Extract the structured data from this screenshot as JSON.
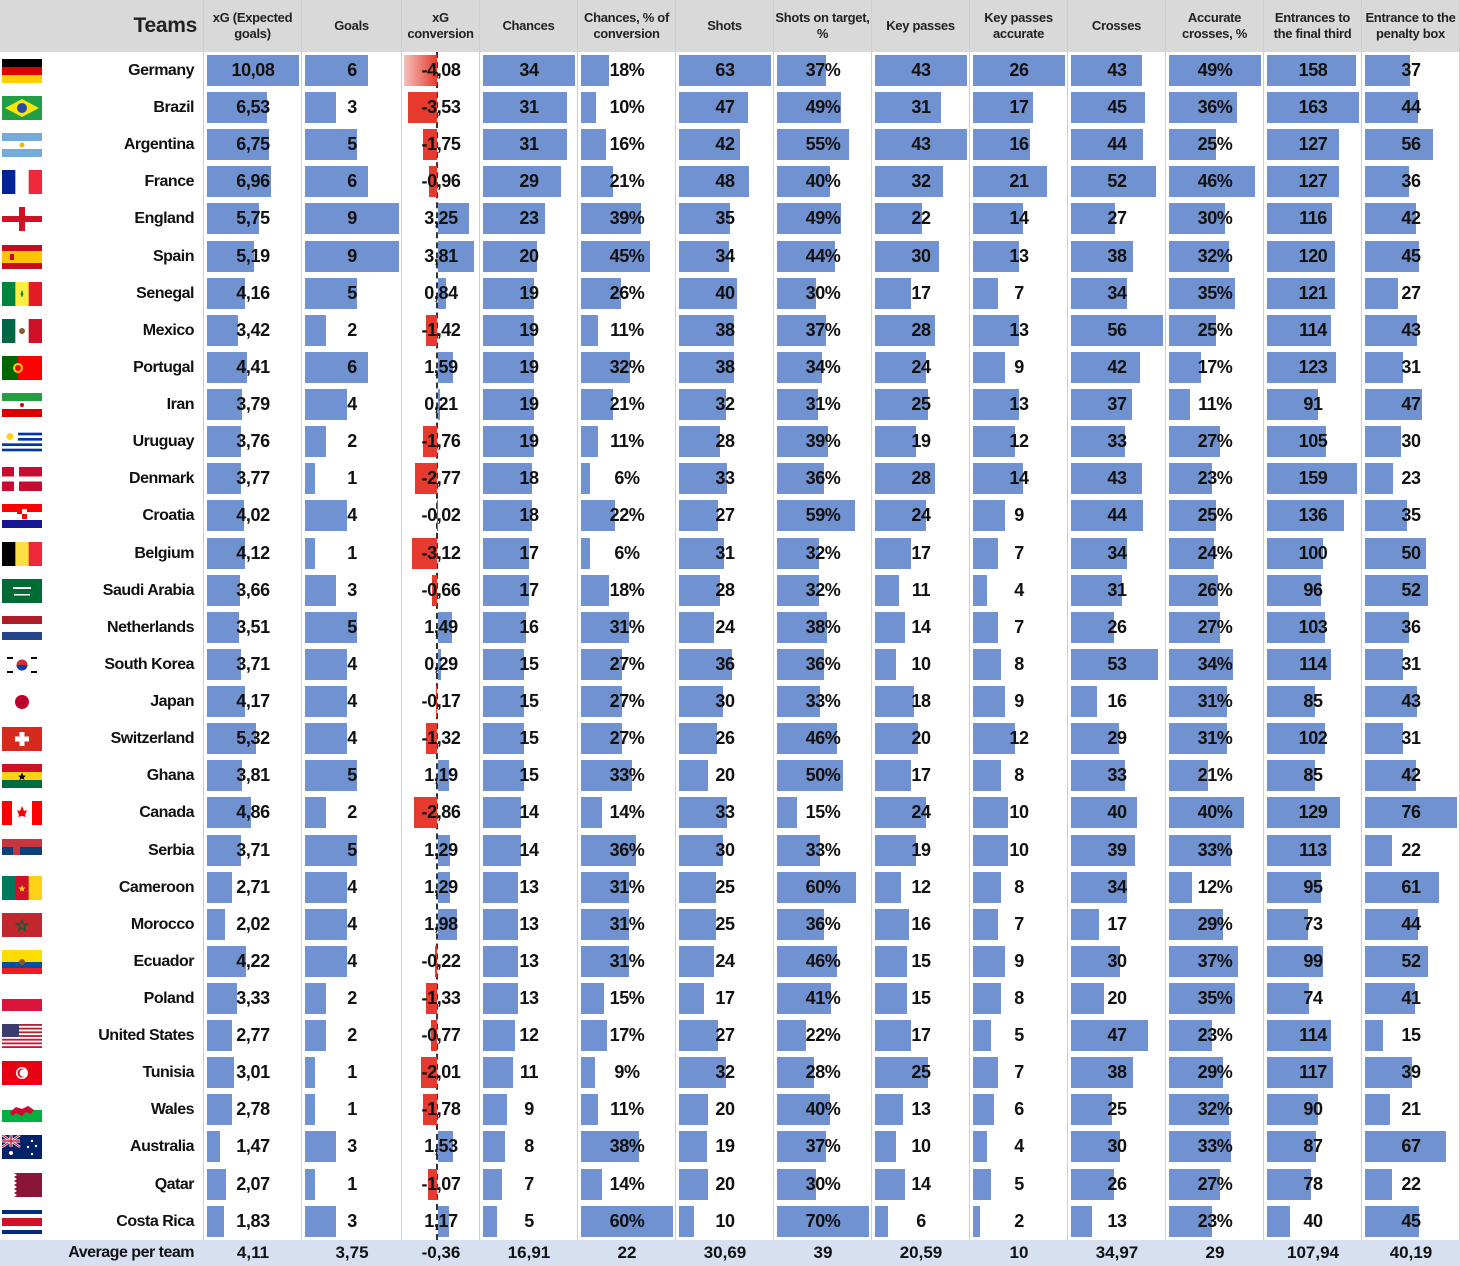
{
  "chart_data": {
    "type": "table",
    "columns": [
      {
        "key": "team",
        "label": "Teams"
      },
      {
        "key": "xg",
        "label": "xG (Expected goals)"
      },
      {
        "key": "goals",
        "label": "Goals"
      },
      {
        "key": "xgconv",
        "label": "xG conversion"
      },
      {
        "key": "chances",
        "label": "Chances"
      },
      {
        "key": "chance_conv",
        "label": "Chances, % of conversion"
      },
      {
        "key": "shots",
        "label": "Shots"
      },
      {
        "key": "sot",
        "label": "Shots on target, %"
      },
      {
        "key": "key_passes",
        "label": "Key passes"
      },
      {
        "key": "kp_acc",
        "label": "Key passes accurate"
      },
      {
        "key": "crosses",
        "label": "Crosses"
      },
      {
        "key": "acc_cross",
        "label": "Accurate crosses, %"
      },
      {
        "key": "final_third",
        "label": "Entrances to the final third"
      },
      {
        "key": "pen_box",
        "label": "Entrance to the penalty box"
      }
    ],
    "rows": [
      {
        "team": "Germany",
        "flag": "germany",
        "xg": "10,08",
        "goals": 6,
        "xgconv": "-4,08",
        "chances": 34,
        "chance_conv": "18%",
        "shots": 63,
        "sot": "37%",
        "key_passes": 43,
        "kp_acc": 26,
        "crosses": 43,
        "acc_cross": "49%",
        "final_third": 158,
        "pen_box": 37
      },
      {
        "team": "Brazil",
        "flag": "brazil",
        "xg": "6,53",
        "goals": 3,
        "xgconv": "-3,53",
        "chances": 31,
        "chance_conv": "10%",
        "shots": 47,
        "sot": "49%",
        "key_passes": 31,
        "kp_acc": 17,
        "crosses": 45,
        "acc_cross": "36%",
        "final_third": 163,
        "pen_box": 44
      },
      {
        "team": "Argentina",
        "flag": "argentina",
        "xg": "6,75",
        "goals": 5,
        "xgconv": "-1,75",
        "chances": 31,
        "chance_conv": "16%",
        "shots": 42,
        "sot": "55%",
        "key_passes": 43,
        "kp_acc": 16,
        "crosses": 44,
        "acc_cross": "25%",
        "final_third": 127,
        "pen_box": 56
      },
      {
        "team": "France",
        "flag": "france",
        "xg": "6,96",
        "goals": 6,
        "xgconv": "-0,96",
        "chances": 29,
        "chance_conv": "21%",
        "shots": 48,
        "sot": "40%",
        "key_passes": 32,
        "kp_acc": 21,
        "crosses": 52,
        "acc_cross": "46%",
        "final_third": 127,
        "pen_box": 36
      },
      {
        "team": "England",
        "flag": "england",
        "xg": "5,75",
        "goals": 9,
        "xgconv": "3,25",
        "chances": 23,
        "chance_conv": "39%",
        "shots": 35,
        "sot": "49%",
        "key_passes": 22,
        "kp_acc": 14,
        "crosses": 27,
        "acc_cross": "30%",
        "final_third": 116,
        "pen_box": 42
      },
      {
        "team": "Spain",
        "flag": "spain",
        "xg": "5,19",
        "goals": 9,
        "xgconv": "3,81",
        "chances": 20,
        "chance_conv": "45%",
        "shots": 34,
        "sot": "44%",
        "key_passes": 30,
        "kp_acc": 13,
        "crosses": 38,
        "acc_cross": "32%",
        "final_third": 120,
        "pen_box": 45
      },
      {
        "team": "Senegal",
        "flag": "senegal",
        "xg": "4,16",
        "goals": 5,
        "xgconv": "0,84",
        "chances": 19,
        "chance_conv": "26%",
        "shots": 40,
        "sot": "30%",
        "key_passes": 17,
        "kp_acc": 7,
        "crosses": 34,
        "acc_cross": "35%",
        "final_third": 121,
        "pen_box": 27
      },
      {
        "team": "Mexico",
        "flag": "mexico",
        "xg": "3,42",
        "goals": 2,
        "xgconv": "-1,42",
        "chances": 19,
        "chance_conv": "11%",
        "shots": 38,
        "sot": "37%",
        "key_passes": 28,
        "kp_acc": 13,
        "crosses": 56,
        "acc_cross": "25%",
        "final_third": 114,
        "pen_box": 43
      },
      {
        "team": "Portugal",
        "flag": "portugal",
        "xg": "4,41",
        "goals": 6,
        "xgconv": "1,59",
        "chances": 19,
        "chance_conv": "32%",
        "shots": 38,
        "sot": "34%",
        "key_passes": 24,
        "kp_acc": 9,
        "crosses": 42,
        "acc_cross": "17%",
        "final_third": 123,
        "pen_box": 31
      },
      {
        "team": "Iran",
        "flag": "iran",
        "xg": "3,79",
        "goals": 4,
        "xgconv": "0,21",
        "chances": 19,
        "chance_conv": "21%",
        "shots": 32,
        "sot": "31%",
        "key_passes": 25,
        "kp_acc": 13,
        "crosses": 37,
        "acc_cross": "11%",
        "final_third": 91,
        "pen_box": 47
      },
      {
        "team": "Uruguay",
        "flag": "uruguay",
        "xg": "3,76",
        "goals": 2,
        "xgconv": "-1,76",
        "chances": 19,
        "chance_conv": "11%",
        "shots": 28,
        "sot": "39%",
        "key_passes": 19,
        "kp_acc": 12,
        "crosses": 33,
        "acc_cross": "27%",
        "final_third": 105,
        "pen_box": 30
      },
      {
        "team": "Denmark",
        "flag": "denmark",
        "xg": "3,77",
        "goals": 1,
        "xgconv": "-2,77",
        "chances": 18,
        "chance_conv": "6%",
        "shots": 33,
        "sot": "36%",
        "key_passes": 28,
        "kp_acc": 14,
        "crosses": 43,
        "acc_cross": "23%",
        "final_third": 159,
        "pen_box": 23
      },
      {
        "team": "Croatia",
        "flag": "croatia",
        "xg": "4,02",
        "goals": 4,
        "xgconv": "-0,02",
        "chances": 18,
        "chance_conv": "22%",
        "shots": 27,
        "sot": "59%",
        "key_passes": 24,
        "kp_acc": 9,
        "crosses": 44,
        "acc_cross": "25%",
        "final_third": 136,
        "pen_box": 35
      },
      {
        "team": "Belgium",
        "flag": "belgium",
        "xg": "4,12",
        "goals": 1,
        "xgconv": "-3,12",
        "chances": 17,
        "chance_conv": "6%",
        "shots": 31,
        "sot": "32%",
        "key_passes": 17,
        "kp_acc": 7,
        "crosses": 34,
        "acc_cross": "24%",
        "final_third": 100,
        "pen_box": 50
      },
      {
        "team": "Saudi Arabia",
        "flag": "saudi",
        "xg": "3,66",
        "goals": 3,
        "xgconv": "-0,66",
        "chances": 17,
        "chance_conv": "18%",
        "shots": 28,
        "sot": "32%",
        "key_passes": 11,
        "kp_acc": 4,
        "crosses": 31,
        "acc_cross": "26%",
        "final_third": 96,
        "pen_box": 52
      },
      {
        "team": "Netherlands",
        "flag": "netherlands",
        "xg": "3,51",
        "goals": 5,
        "xgconv": "1,49",
        "chances": 16,
        "chance_conv": "31%",
        "shots": 24,
        "sot": "38%",
        "key_passes": 14,
        "kp_acc": 7,
        "crosses": 26,
        "acc_cross": "27%",
        "final_third": 103,
        "pen_box": 36
      },
      {
        "team": "South Korea",
        "flag": "korea",
        "xg": "3,71",
        "goals": 4,
        "xgconv": "0,29",
        "chances": 15,
        "chance_conv": "27%",
        "shots": 36,
        "sot": "36%",
        "key_passes": 10,
        "kp_acc": 8,
        "crosses": 53,
        "acc_cross": "34%",
        "final_third": 114,
        "pen_box": 31
      },
      {
        "team": "Japan",
        "flag": "japan",
        "xg": "4,17",
        "goals": 4,
        "xgconv": "-0,17",
        "chances": 15,
        "chance_conv": "27%",
        "shots": 30,
        "sot": "33%",
        "key_passes": 18,
        "kp_acc": 9,
        "crosses": 16,
        "acc_cross": "31%",
        "final_third": 85,
        "pen_box": 43
      },
      {
        "team": "Switzerland",
        "flag": "switzerland",
        "xg": "5,32",
        "goals": 4,
        "xgconv": "-1,32",
        "chances": 15,
        "chance_conv": "27%",
        "shots": 26,
        "sot": "46%",
        "key_passes": 20,
        "kp_acc": 12,
        "crosses": 29,
        "acc_cross": "31%",
        "final_third": 102,
        "pen_box": 31
      },
      {
        "team": "Ghana",
        "flag": "ghana",
        "xg": "3,81",
        "goals": 5,
        "xgconv": "1,19",
        "chances": 15,
        "chance_conv": "33%",
        "shots": 20,
        "sot": "50%",
        "key_passes": 17,
        "kp_acc": 8,
        "crosses": 33,
        "acc_cross": "21%",
        "final_third": 85,
        "pen_box": 42
      },
      {
        "team": "Canada",
        "flag": "canada",
        "xg": "4,86",
        "goals": 2,
        "xgconv": "-2,86",
        "chances": 14,
        "chance_conv": "14%",
        "shots": 33,
        "sot": "15%",
        "key_passes": 24,
        "kp_acc": 10,
        "crosses": 40,
        "acc_cross": "40%",
        "final_third": 129,
        "pen_box": 76
      },
      {
        "team": "Serbia",
        "flag": "serbia",
        "xg": "3,71",
        "goals": 5,
        "xgconv": "1,29",
        "chances": 14,
        "chance_conv": "36%",
        "shots": 30,
        "sot": "33%",
        "key_passes": 19,
        "kp_acc": 10,
        "crosses": 39,
        "acc_cross": "33%",
        "final_third": 113,
        "pen_box": 22
      },
      {
        "team": "Cameroon",
        "flag": "cameroon",
        "xg": "2,71",
        "goals": 4,
        "xgconv": "1,29",
        "chances": 13,
        "chance_conv": "31%",
        "shots": 25,
        "sot": "60%",
        "key_passes": 12,
        "kp_acc": 8,
        "crosses": 34,
        "acc_cross": "12%",
        "final_third": 95,
        "pen_box": 61
      },
      {
        "team": "Morocco",
        "flag": "morocco",
        "xg": "2,02",
        "goals": 4,
        "xgconv": "1,98",
        "chances": 13,
        "chance_conv": "31%",
        "shots": 25,
        "sot": "36%",
        "key_passes": 16,
        "kp_acc": 7,
        "crosses": 17,
        "acc_cross": "29%",
        "final_third": 73,
        "pen_box": 44
      },
      {
        "team": "Ecuador",
        "flag": "ecuador",
        "xg": "4,22",
        "goals": 4,
        "xgconv": "-0,22",
        "chances": 13,
        "chance_conv": "31%",
        "shots": 24,
        "sot": "46%",
        "key_passes": 15,
        "kp_acc": 9,
        "crosses": 30,
        "acc_cross": "37%",
        "final_third": 99,
        "pen_box": 52
      },
      {
        "team": "Poland",
        "flag": "poland",
        "xg": "3,33",
        "goals": 2,
        "xgconv": "-1,33",
        "chances": 13,
        "chance_conv": "15%",
        "shots": 17,
        "sot": "41%",
        "key_passes": 15,
        "kp_acc": 8,
        "crosses": 20,
        "acc_cross": "35%",
        "final_third": 74,
        "pen_box": 41
      },
      {
        "team": "United States",
        "flag": "usa",
        "xg": "2,77",
        "goals": 2,
        "xgconv": "-0,77",
        "chances": 12,
        "chance_conv": "17%",
        "shots": 27,
        "sot": "22%",
        "key_passes": 17,
        "kp_acc": 5,
        "crosses": 47,
        "acc_cross": "23%",
        "final_third": 114,
        "pen_box": 15
      },
      {
        "team": "Tunisia",
        "flag": "tunisia",
        "xg": "3,01",
        "goals": 1,
        "xgconv": "-2,01",
        "chances": 11,
        "chance_conv": "9%",
        "shots": 32,
        "sot": "28%",
        "key_passes": 25,
        "kp_acc": 7,
        "crosses": 38,
        "acc_cross": "29%",
        "final_third": 117,
        "pen_box": 39
      },
      {
        "team": "Wales",
        "flag": "wales",
        "xg": "2,78",
        "goals": 1,
        "xgconv": "-1,78",
        "chances": 9,
        "chance_conv": "11%",
        "shots": 20,
        "sot": "40%",
        "key_passes": 13,
        "kp_acc": 6,
        "crosses": 25,
        "acc_cross": "32%",
        "final_third": 90,
        "pen_box": 21
      },
      {
        "team": "Australia",
        "flag": "australia",
        "xg": "1,47",
        "goals": 3,
        "xgconv": "1,53",
        "chances": 8,
        "chance_conv": "38%",
        "shots": 19,
        "sot": "37%",
        "key_passes": 10,
        "kp_acc": 4,
        "crosses": 30,
        "acc_cross": "33%",
        "final_third": 87,
        "pen_box": 67
      },
      {
        "team": "Qatar",
        "flag": "qatar",
        "xg": "2,07",
        "goals": 1,
        "xgconv": "-1,07",
        "chances": 7,
        "chance_conv": "14%",
        "shots": 20,
        "sot": "30%",
        "key_passes": 14,
        "kp_acc": 5,
        "crosses": 26,
        "acc_cross": "27%",
        "final_third": 78,
        "pen_box": 22
      },
      {
        "team": "Costa Rica",
        "flag": "costarica",
        "xg": "1,83",
        "goals": 3,
        "xgconv": "1,17",
        "chances": 5,
        "chance_conv": "60%",
        "shots": 10,
        "sot": "70%",
        "key_passes": 6,
        "kp_acc": 2,
        "crosses": 13,
        "acc_cross": "23%",
        "final_third": 40,
        "pen_box": 45
      }
    ],
    "average": {
      "label": "Average per team",
      "xg": "4,11",
      "goals": "3,75",
      "xgconv": "-0,36",
      "chances": "16,91",
      "chance_conv": "22",
      "shots": "30,69",
      "sot": "39",
      "key_passes": "20,59",
      "kp_acc": "10",
      "crosses": "34,97",
      "acc_cross": "29",
      "final_third": "107,94",
      "pen_box": "40,19"
    },
    "colors": {
      "bar": "#7192d0",
      "negative": "#e63a2e",
      "header": "#d9d9d9",
      "average_row": "#d6e0f0"
    }
  }
}
